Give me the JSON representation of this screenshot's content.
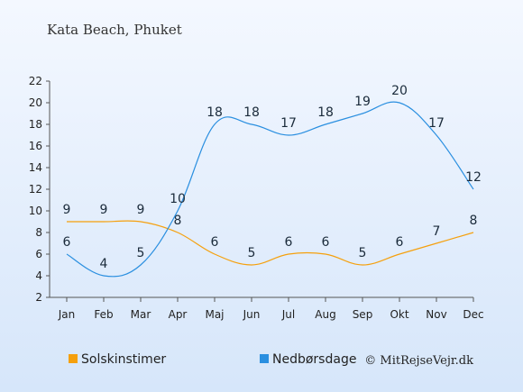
{
  "chart_data": {
    "type": "line",
    "title": "Kata Beach, Phuket",
    "categories": [
      "Jan",
      "Feb",
      "Mar",
      "Apr",
      "Maj",
      "Jun",
      "Jul",
      "Aug",
      "Sep",
      "Okt",
      "Nov",
      "Dec"
    ],
    "series": [
      {
        "name": "Solskinstimer",
        "color": "#f5a00d",
        "values": [
          9,
          9,
          9,
          8,
          6,
          5,
          6,
          6,
          5,
          6,
          7,
          8
        ]
      },
      {
        "name": "Nedbørsdage",
        "color": "#2a8fe0",
        "values": [
          6,
          4,
          5,
          10,
          18,
          18,
          17,
          18,
          19,
          20,
          17,
          12
        ]
      }
    ],
    "ylim": [
      2,
      22
    ],
    "yticks": [
      2,
      4,
      6,
      8,
      10,
      12,
      14,
      16,
      18,
      20,
      22
    ],
    "grid": false,
    "legend_position": "bottom-left",
    "background": {
      "top": "#f4f8ff",
      "bottom": "#d6e6fa"
    }
  },
  "credit": "© MitRejseVejr.dk"
}
